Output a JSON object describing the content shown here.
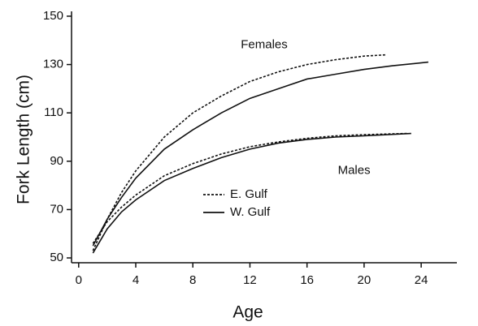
{
  "chart_data": {
    "type": "line",
    "xlabel": "Age",
    "ylabel": "Fork Length (cm)",
    "xlim": [
      -0.5,
      26.5
    ],
    "xticks": [
      0,
      4,
      8,
      12,
      16,
      20,
      24
    ],
    "ylim": [
      48,
      152
    ],
    "yticks": [
      50,
      70,
      90,
      110,
      130,
      150
    ],
    "annotations": [
      {
        "text": "Females",
        "x": 13,
        "y": 138
      },
      {
        "text": "Males",
        "x": 19.3,
        "y": 86
      }
    ],
    "series": [
      {
        "name": "E. Gulf",
        "style": "dotted",
        "color": "#111111",
        "curves": [
          {
            "x": [
              1,
              2,
              3,
              4,
              6,
              8,
              10,
              12,
              14,
              16,
              18,
              20,
              21.5
            ],
            "values": [
              53,
              66,
              77,
              86,
              100,
              110,
              117,
              123,
              127,
              130,
              132,
              133.5,
              134
            ]
          },
          {
            "x": [
              1,
              2,
              3,
              4,
              6,
              8,
              10,
              12,
              14,
              16,
              18,
              20,
              23
            ],
            "values": [
              56,
              65,
              71,
              76,
              84,
              89,
              93,
              96,
              98,
              99.5,
              100.5,
              101,
              101.5
            ]
          }
        ]
      },
      {
        "name": "W. Gulf",
        "style": "solid",
        "color": "#111111",
        "curves": [
          {
            "x": [
              1,
              2,
              3,
              4,
              6,
              8,
              10,
              12,
              14,
              16,
              18,
              20,
              22,
              24.5
            ],
            "values": [
              55,
              66,
              75,
              83,
              95,
              103,
              110,
              116,
              120,
              124,
              126,
              128,
              129.5,
              131
            ]
          },
          {
            "x": [
              1,
              2,
              3,
              4,
              6,
              8,
              10,
              12,
              14,
              16,
              18,
              20,
              23.3
            ],
            "values": [
              52,
              62,
              69,
              74,
              82,
              87,
              91.5,
              95,
              97.5,
              99,
              100,
              100.5,
              101.5
            ]
          }
        ]
      }
    ]
  }
}
